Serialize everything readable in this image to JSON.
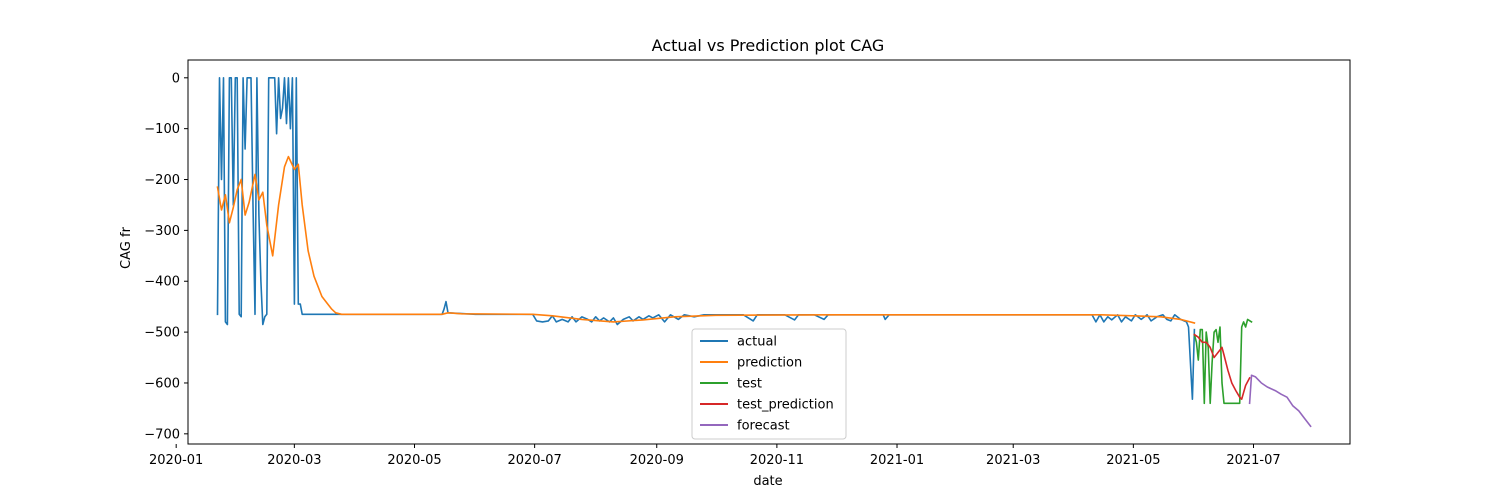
{
  "chart_data": {
    "type": "line",
    "title": "Actual vs Prediction plot CAG",
    "xlabel": "date",
    "ylabel": "CAG fr",
    "xlim": [
      "2020-01-07",
      "2021-08-19"
    ],
    "ylim": [
      -720,
      35
    ],
    "x_ticks": [
      "2020-01",
      "2020-03",
      "2020-05",
      "2020-07",
      "2020-09",
      "2020-11",
      "2021-01",
      "2021-03",
      "2021-05",
      "2021-07"
    ],
    "y_ticks": [
      0,
      -100,
      -200,
      -300,
      -400,
      -500,
      -600,
      -700
    ],
    "legend_position": "lower-center",
    "series": [
      {
        "name": "actual",
        "color": "#1f77b4",
        "points": [
          [
            "2020-01-22",
            -465
          ],
          [
            "2020-01-23",
            0
          ],
          [
            "2020-01-24",
            -200
          ],
          [
            "2020-01-25",
            0
          ],
          [
            "2020-01-26",
            -480
          ],
          [
            "2020-01-27",
            -485
          ],
          [
            "2020-01-28",
            0
          ],
          [
            "2020-01-29",
            0
          ],
          [
            "2020-01-30",
            -250
          ],
          [
            "2020-01-31",
            0
          ],
          [
            "2020-02-01",
            0
          ],
          [
            "2020-02-02",
            -465
          ],
          [
            "2020-02-03",
            -470
          ],
          [
            "2020-02-04",
            0
          ],
          [
            "2020-02-05",
            -140
          ],
          [
            "2020-02-06",
            0
          ],
          [
            "2020-02-07",
            0
          ],
          [
            "2020-02-08",
            0
          ],
          [
            "2020-02-09",
            -250
          ],
          [
            "2020-02-10",
            -465
          ],
          [
            "2020-02-11",
            0
          ],
          [
            "2020-02-12",
            -270
          ],
          [
            "2020-02-13",
            -400
          ],
          [
            "2020-02-14",
            -485
          ],
          [
            "2020-02-15",
            -470
          ],
          [
            "2020-02-16",
            -465
          ],
          [
            "2020-02-17",
            0
          ],
          [
            "2020-02-18",
            0
          ],
          [
            "2020-02-19",
            0
          ],
          [
            "2020-02-20",
            0
          ],
          [
            "2020-02-21",
            -110
          ],
          [
            "2020-02-22",
            0
          ],
          [
            "2020-02-23",
            -80
          ],
          [
            "2020-02-24",
            -60
          ],
          [
            "2020-02-25",
            0
          ],
          [
            "2020-02-26",
            -90
          ],
          [
            "2020-02-27",
            0
          ],
          [
            "2020-02-28",
            -100
          ],
          [
            "2020-02-29",
            0
          ],
          [
            "2020-03-01",
            -445
          ],
          [
            "2020-03-02",
            0
          ],
          [
            "2020-03-03",
            -445
          ],
          [
            "2020-03-04",
            -445
          ],
          [
            "2020-03-05",
            -465
          ],
          [
            "2020-03-20",
            -465
          ],
          [
            "2020-04-15",
            -465
          ],
          [
            "2020-05-15",
            -465
          ],
          [
            "2020-05-16",
            -455
          ],
          [
            "2020-05-17",
            -440
          ],
          [
            "2020-05-18",
            -462
          ],
          [
            "2020-06-01",
            -465
          ],
          [
            "2020-06-30",
            -465
          ],
          [
            "2020-07-02",
            -478
          ],
          [
            "2020-07-05",
            -480
          ],
          [
            "2020-07-08",
            -478
          ],
          [
            "2020-07-10",
            -468
          ],
          [
            "2020-07-12",
            -480
          ],
          [
            "2020-07-15",
            -475
          ],
          [
            "2020-07-18",
            -480
          ],
          [
            "2020-07-20",
            -470
          ],
          [
            "2020-07-22",
            -480
          ],
          [
            "2020-07-25",
            -470
          ],
          [
            "2020-07-28",
            -475
          ],
          [
            "2020-07-30",
            -480
          ],
          [
            "2020-08-01",
            -470
          ],
          [
            "2020-08-03",
            -478
          ],
          [
            "2020-08-05",
            -472
          ],
          [
            "2020-08-08",
            -480
          ],
          [
            "2020-08-10",
            -472
          ],
          [
            "2020-08-12",
            -485
          ],
          [
            "2020-08-15",
            -475
          ],
          [
            "2020-08-18",
            -470
          ],
          [
            "2020-08-20",
            -478
          ],
          [
            "2020-08-23",
            -470
          ],
          [
            "2020-08-25",
            -475
          ],
          [
            "2020-08-28",
            -468
          ],
          [
            "2020-08-30",
            -472
          ],
          [
            "2020-09-02",
            -466
          ],
          [
            "2020-09-05",
            -480
          ],
          [
            "2020-09-08",
            -466
          ],
          [
            "2020-09-12",
            -475
          ],
          [
            "2020-09-15",
            -466
          ],
          [
            "2020-09-20",
            -470
          ],
          [
            "2020-09-25",
            -466
          ],
          [
            "2020-10-01",
            -466
          ],
          [
            "2020-10-15",
            -466
          ],
          [
            "2020-10-20",
            -478
          ],
          [
            "2020-10-22",
            -466
          ],
          [
            "2020-11-05",
            -466
          ],
          [
            "2020-11-10",
            -476
          ],
          [
            "2020-11-12",
            -466
          ],
          [
            "2020-11-20",
            -466
          ],
          [
            "2020-11-25",
            -475
          ],
          [
            "2020-11-27",
            -466
          ],
          [
            "2020-12-10",
            -466
          ],
          [
            "2020-12-25",
            -466
          ],
          [
            "2020-12-26",
            -475
          ],
          [
            "2020-12-28",
            -466
          ],
          [
            "2021-02-01",
            -466
          ],
          [
            "2021-04-10",
            -466
          ],
          [
            "2021-04-12",
            -480
          ],
          [
            "2021-04-14",
            -466
          ],
          [
            "2021-04-16",
            -480
          ],
          [
            "2021-04-18",
            -470
          ],
          [
            "2021-04-20",
            -476
          ],
          [
            "2021-04-23",
            -466
          ],
          [
            "2021-04-25",
            -480
          ],
          [
            "2021-04-27",
            -470
          ],
          [
            "2021-04-30",
            -478
          ],
          [
            "2021-05-02",
            -466
          ],
          [
            "2021-05-05",
            -475
          ],
          [
            "2021-05-08",
            -466
          ],
          [
            "2021-05-10",
            -478
          ],
          [
            "2021-05-13",
            -470
          ],
          [
            "2021-05-16",
            -466
          ],
          [
            "2021-05-18",
            -475
          ],
          [
            "2021-05-20",
            -478
          ],
          [
            "2021-05-22",
            -466
          ],
          [
            "2021-05-25",
            -475
          ],
          [
            "2021-05-28",
            -480
          ],
          [
            "2021-05-29",
            -490
          ],
          [
            "2021-05-31",
            -632
          ],
          [
            "2021-06-01",
            -495
          ]
        ]
      },
      {
        "name": "prediction",
        "color": "#ff7f0e",
        "points": [
          [
            "2020-01-22",
            -215
          ],
          [
            "2020-01-24",
            -260
          ],
          [
            "2020-01-26",
            -230
          ],
          [
            "2020-01-28",
            -285
          ],
          [
            "2020-01-30",
            -255
          ],
          [
            "2020-02-01",
            -220
          ],
          [
            "2020-02-03",
            -200
          ],
          [
            "2020-02-05",
            -270
          ],
          [
            "2020-02-07",
            -245
          ],
          [
            "2020-02-10",
            -190
          ],
          [
            "2020-02-12",
            -240
          ],
          [
            "2020-02-14",
            -225
          ],
          [
            "2020-02-16",
            -290
          ],
          [
            "2020-02-19",
            -350
          ],
          [
            "2020-02-22",
            -250
          ],
          [
            "2020-02-25",
            -175
          ],
          [
            "2020-02-27",
            -155
          ],
          [
            "2020-03-01",
            -180
          ],
          [
            "2020-03-03",
            -170
          ],
          [
            "2020-03-05",
            -250
          ],
          [
            "2020-03-08",
            -340
          ],
          [
            "2020-03-11",
            -390
          ],
          [
            "2020-03-15",
            -430
          ],
          [
            "2020-03-18",
            -445
          ],
          [
            "2020-03-20",
            -455
          ],
          [
            "2020-03-22",
            -462
          ],
          [
            "2020-03-25",
            -465
          ],
          [
            "2020-05-15",
            -465
          ],
          [
            "2020-05-18",
            -462
          ],
          [
            "2020-05-25",
            -464
          ],
          [
            "2020-06-30",
            -465
          ],
          [
            "2020-07-10",
            -468
          ],
          [
            "2020-07-25",
            -475
          ],
          [
            "2020-08-10",
            -480
          ],
          [
            "2020-08-25",
            -476
          ],
          [
            "2020-09-10",
            -470
          ],
          [
            "2020-10-01",
            -467
          ],
          [
            "2020-12-01",
            -466
          ],
          [
            "2021-04-15",
            -466
          ],
          [
            "2021-05-15",
            -470
          ],
          [
            "2021-05-25",
            -475
          ],
          [
            "2021-06-01",
            -482
          ]
        ]
      },
      {
        "name": "test",
        "color": "#2ca02c",
        "points": [
          [
            "2021-06-01",
            -505
          ],
          [
            "2021-06-02",
            -520
          ],
          [
            "2021-06-03",
            -555
          ],
          [
            "2021-06-04",
            -495
          ],
          [
            "2021-06-05",
            -495
          ],
          [
            "2021-06-06",
            -640
          ],
          [
            "2021-06-07",
            -500
          ],
          [
            "2021-06-08",
            -530
          ],
          [
            "2021-06-09",
            -640
          ],
          [
            "2021-06-10",
            -560
          ],
          [
            "2021-06-11",
            -500
          ],
          [
            "2021-06-12",
            -495
          ],
          [
            "2021-06-13",
            -520
          ],
          [
            "2021-06-14",
            -490
          ],
          [
            "2021-06-15",
            -600
          ],
          [
            "2021-06-16",
            -640
          ],
          [
            "2021-06-17",
            -640
          ],
          [
            "2021-06-20",
            -640
          ],
          [
            "2021-06-24",
            -640
          ],
          [
            "2021-06-25",
            -490
          ],
          [
            "2021-06-26",
            -480
          ],
          [
            "2021-06-27",
            -490
          ],
          [
            "2021-06-28",
            -475
          ],
          [
            "2021-06-30",
            -480
          ]
        ]
      },
      {
        "name": "test_prediction",
        "color": "#d62728",
        "points": [
          [
            "2021-06-01",
            -505
          ],
          [
            "2021-06-03",
            -510
          ],
          [
            "2021-06-05",
            -520
          ],
          [
            "2021-06-07",
            -520
          ],
          [
            "2021-06-09",
            -530
          ],
          [
            "2021-06-11",
            -550
          ],
          [
            "2021-06-13",
            -540
          ],
          [
            "2021-06-15",
            -530
          ],
          [
            "2021-06-16",
            -545
          ],
          [
            "2021-06-18",
            -575
          ],
          [
            "2021-06-20",
            -600
          ],
          [
            "2021-06-22",
            -615
          ],
          [
            "2021-06-24",
            -628
          ],
          [
            "2021-06-25",
            -632
          ],
          [
            "2021-06-27",
            -605
          ],
          [
            "2021-06-29",
            -590
          ]
        ]
      },
      {
        "name": "forecast",
        "color": "#9467bd",
        "points": [
          [
            "2021-06-29",
            -640
          ],
          [
            "2021-06-30",
            -585
          ],
          [
            "2021-07-02",
            -588
          ],
          [
            "2021-07-05",
            -600
          ],
          [
            "2021-07-08",
            -608
          ],
          [
            "2021-07-12",
            -615
          ],
          [
            "2021-07-15",
            -622
          ],
          [
            "2021-07-18",
            -628
          ],
          [
            "2021-07-21",
            -645
          ],
          [
            "2021-07-24",
            -655
          ],
          [
            "2021-07-27",
            -670
          ],
          [
            "2021-07-30",
            -685
          ]
        ]
      }
    ]
  }
}
